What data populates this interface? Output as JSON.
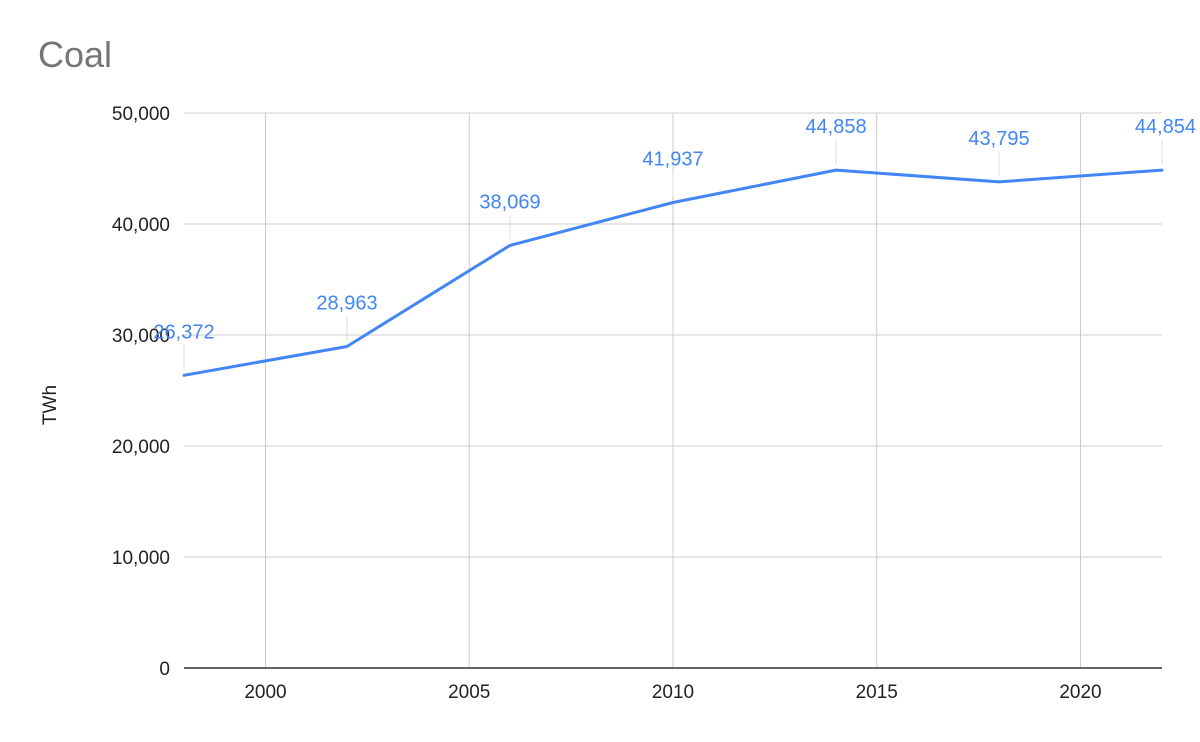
{
  "chart_data": {
    "type": "line",
    "title": "Coal",
    "xlabel": "",
    "ylabel": "TWh",
    "x": [
      1998,
      2002,
      2006,
      2010,
      2014,
      2018,
      2022
    ],
    "series": [
      {
        "values": [
          26372,
          28963,
          38069,
          41937,
          44858,
          43795,
          44854
        ],
        "labels": [
          "26,372",
          "28,963",
          "38,069",
          "41,937",
          "44,858",
          "43,795",
          "44,854"
        ]
      }
    ],
    "xlim": [
      1998,
      2022
    ],
    "ylim": [
      0,
      50000
    ],
    "x_ticks": [
      2000,
      2005,
      2010,
      2015,
      2020
    ],
    "x_tick_labels": [
      "2000",
      "2005",
      "2010",
      "2015",
      "2020"
    ],
    "y_ticks": [
      0,
      10000,
      20000,
      30000,
      40000,
      50000
    ],
    "y_tick_labels": [
      "0",
      "10,000",
      "20,000",
      "30,000",
      "40,000",
      "50,000"
    ],
    "grid": true,
    "legend": "none",
    "colors": {
      "line": "#4285f4",
      "grid": "#cccccc",
      "axis": "#333333",
      "title": "#757575",
      "text": "#222222"
    }
  }
}
